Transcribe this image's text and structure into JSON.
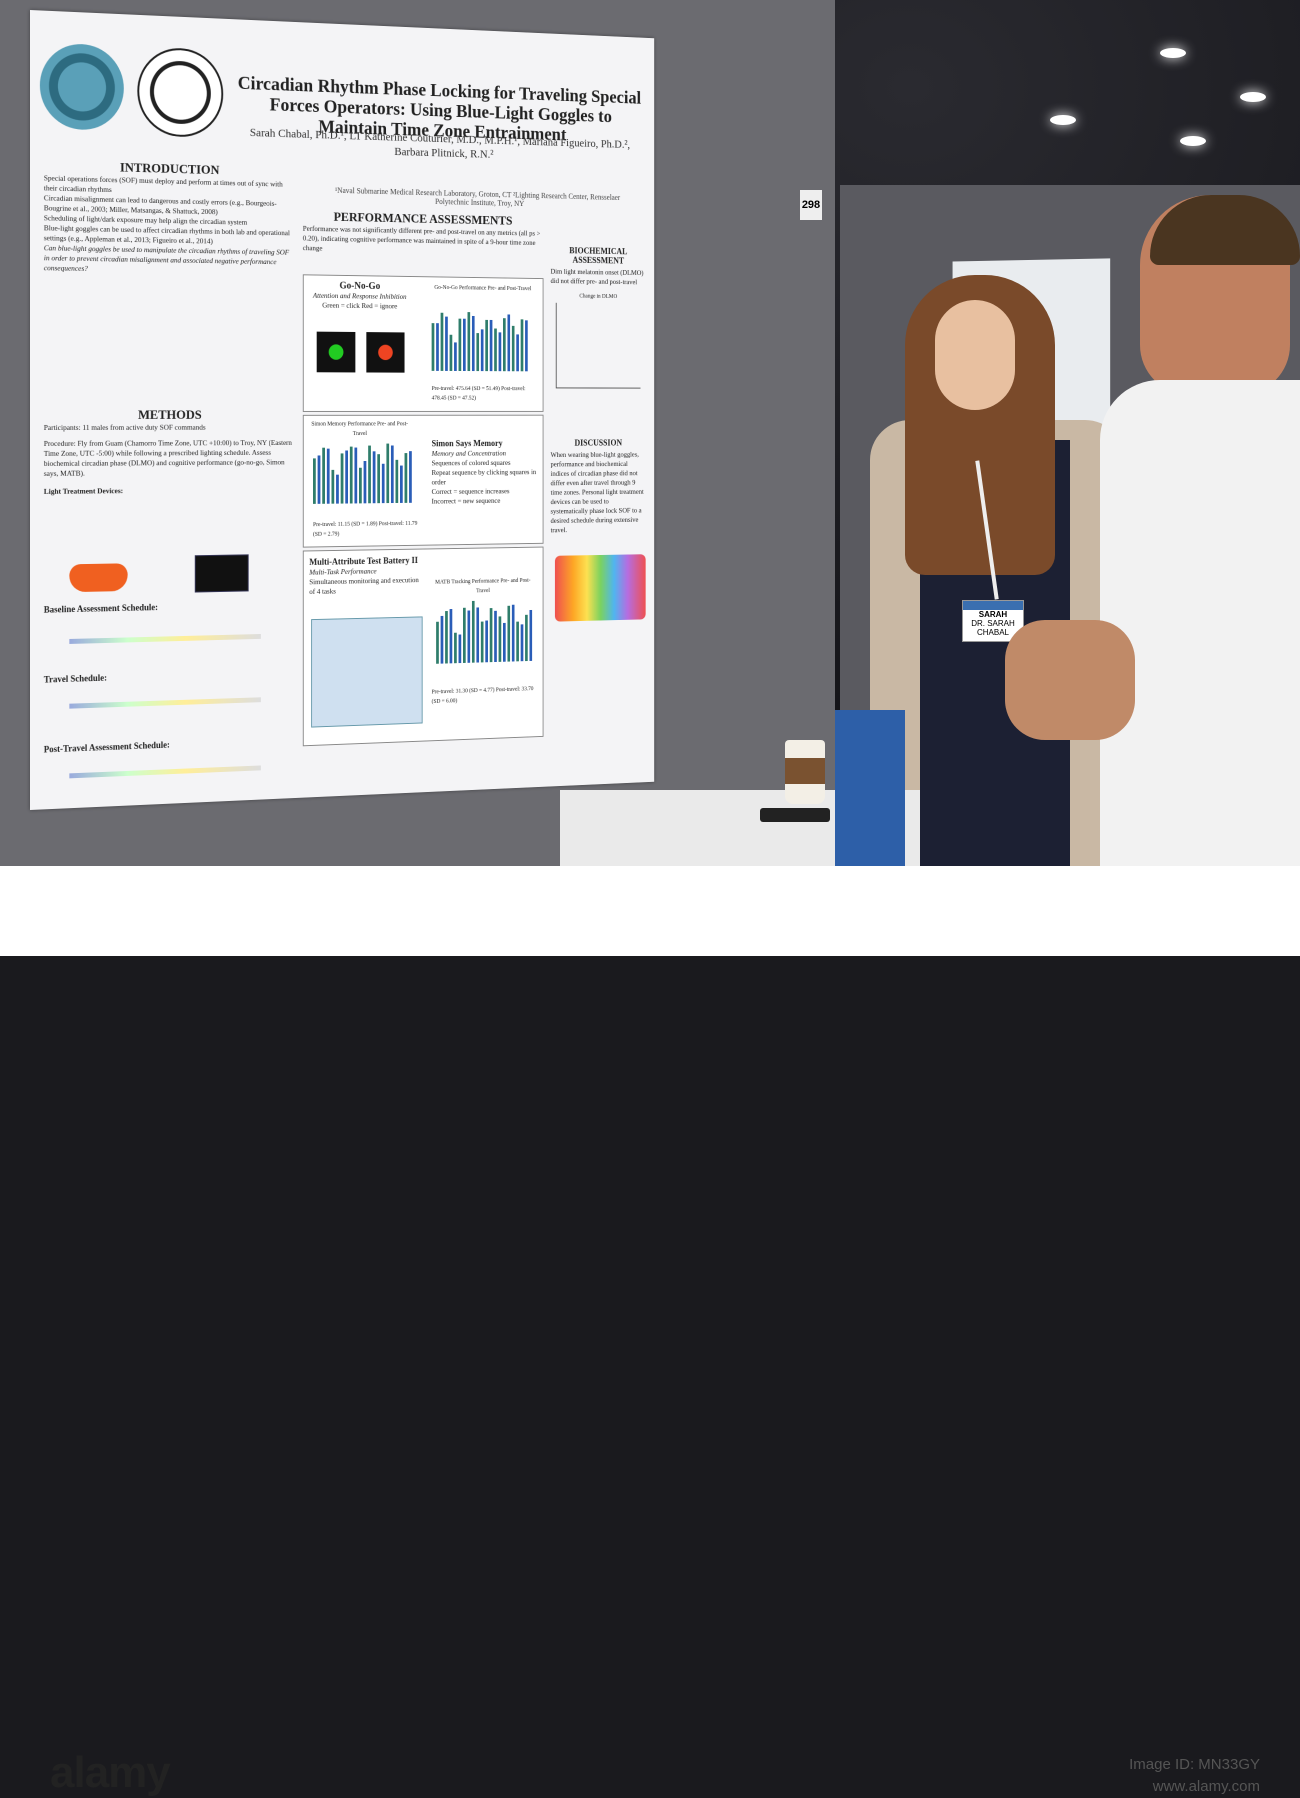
{
  "poster": {
    "title": "Circadian Rhythm Phase Locking for Traveling Special Forces Operators: Using Blue-Light Goggles to Maintain Time Zone Entrainment",
    "authors": "Sarah Chabal, Ph.D.¹, LT Katherine Couturier, M.D., M.P.H.¹, Mariana Figueiro, Ph.D.², Barbara Plitnick, R.N.²",
    "affiliation": "¹Naval Submarine Medical Research Laboratory, Groton, CT  ²Lighting Research Center, Rensselaer Polytechnic Institute, Troy, NY",
    "logo_left_text": "NSMRL",
    "logo_right_text": "RENSSELAER POLYTECHNIC INSTITUTE 1824",
    "introduction": {
      "heading": "INTRODUCTION",
      "bullets": [
        "Special operations forces (SOF) must deploy and perform at times out of sync with their circadian rhythms",
        "Circadian misalignment can lead to dangerous and costly errors (e.g., Bourgeois-Bougrine et al., 2003; Miller, Matsangas, & Shattuck, 2008)",
        "Scheduling of light/dark exposure may help align the circadian system",
        "Blue-light goggles can be used to affect circadian rhythms in both lab and operational settings (e.g., Appleman et al., 2013; Figueiro et al., 2014)",
        "Can blue-light goggles be used to manipulate the circadian rhythms of traveling SOF in order to prevent circadian misalignment and associated negative performance consequences?"
      ]
    },
    "methods": {
      "heading": "METHODS",
      "participants": "Participants: 11 males from active duty SOF commands",
      "procedure": "Procedure: Fly from Guam (Chamorro Time Zone, UTC +10:00) to Troy, NY (Eastern Time Zone, UTC -5:00) while following a prescribed lighting schedule. Assess biochemical circadian phase (DLMO) and cognitive performance (go-no-go, Simon says, MATB).",
      "light_devices": "Light Treatment Devices:",
      "baseline": "Baseline Assessment Schedule:",
      "travel": "Travel Schedule:",
      "post_travel": "Post-Travel Assessment Schedule:"
    },
    "performance": {
      "heading": "PERFORMANCE ASSESSMENTS",
      "summary": "Performance was not significantly different pre- and post-travel on any metrics (all ps > 0.20), indicating cognitive performance was maintained in spite of a 9-hour time zone change",
      "gonogo_title": "Go-No-Go",
      "gonogo_sub": "Attention and Response Inhibition",
      "gonogo_labels": "Green = click    Red = ignore",
      "gonogo_chart_title": "Go-No-Go Performance Pre- and Post-Travel",
      "gonogo_stats": "Pre-travel: 475.64 (SD = 51.49)  Post-travel: 478.45 (SD = 47.52)",
      "simon_chart_title": "Simon Memory Performance Pre- and Post-Travel",
      "simon_title": "Simon Says Memory",
      "simon_sub": "Memory and Concentration",
      "simon_bullets": [
        "Sequences of colored squares",
        "Repeat sequence by clicking squares in order",
        "Correct = sequence increases",
        "Incorrect = new sequence"
      ],
      "simon_stats": "Pre-travel: 11.15 (SD = 1.89)  Post-travel: 11.79 (SD = 2.79)",
      "matb_title": "Multi-Attribute Test Battery II",
      "matb_sub": "Multi-Task Performance",
      "matb_bullet": "Simultaneous monitoring and execution of 4 tasks",
      "matb_chart_title": "MATB Tracking Performance Pre- and Post-Travel",
      "matb_stats": "Pre-travel: 31.30 (SD = 4.77)  Post-travel: 33.70 (SD = 6.00)"
    },
    "biochemical": {
      "heading": "BIOCHEMICAL ASSESSMENT",
      "text": "Dim light melatonin onset (DLMO) did not differ pre- and post-travel",
      "chart_title": "Change in DLMO"
    },
    "discussion": {
      "heading": "DISCUSSION",
      "text": "When wearing blue-light goggles, performance and biochemical indices of circadian phase did not differ even after travel through 9 time zones. Personal light treatment devices can be used to systematically phase lock SOF to a desired schedule during extensive travel."
    }
  },
  "board_number": "298",
  "badge": {
    "first_name": "SARAH",
    "full_name": "DR. SARAH CHABAL"
  },
  "watermark": {
    "brand": "alamy",
    "image_id": "Image ID: MN33GY",
    "site": "www.alamy.com"
  }
}
